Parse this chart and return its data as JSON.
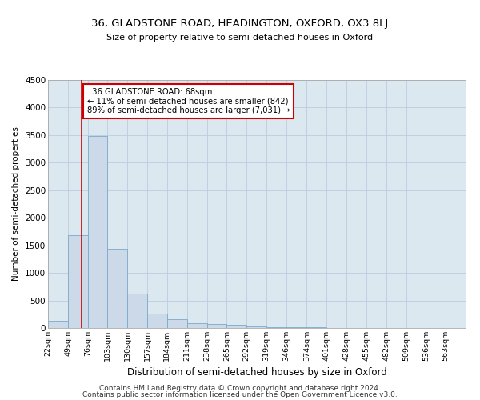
{
  "title1": "36, GLADSTONE ROAD, HEADINGTON, OXFORD, OX3 8LJ",
  "title2": "Size of property relative to semi-detached houses in Oxford",
  "xlabel": "Distribution of semi-detached houses by size in Oxford",
  "ylabel": "Number of semi-detached properties",
  "bar_color": "#ccd9e8",
  "bar_edge_color": "#7aaac8",
  "grid_color": "#bbccdd",
  "bg_color": "#dce8f0",
  "annotation_box_color": "#cc0000",
  "property_line_color": "#cc0000",
  "property_size": 68,
  "annotation_text": "  36 GLADSTONE ROAD: 68sqm\n← 11% of semi-detached houses are smaller (842)\n89% of semi-detached houses are larger (7,031) →",
  "footer1": "Contains HM Land Registry data © Crown copyright and database right 2024.",
  "footer2": "Contains public sector information licensed under the Open Government Licence v3.0.",
  "bin_labels": [
    "22sqm",
    "49sqm",
    "76sqm",
    "103sqm",
    "130sqm",
    "157sqm",
    "184sqm",
    "211sqm",
    "238sqm",
    "265sqm",
    "292sqm",
    "319sqm",
    "346sqm",
    "374sqm",
    "401sqm",
    "428sqm",
    "455sqm",
    "482sqm",
    "509sqm",
    "536sqm",
    "563sqm"
  ],
  "bin_edges": [
    22,
    49,
    76,
    103,
    130,
    157,
    184,
    211,
    238,
    265,
    292,
    319,
    346,
    374,
    401,
    428,
    455,
    482,
    509,
    536,
    563,
    590
  ],
  "bar_heights": [
    130,
    1680,
    3490,
    1430,
    620,
    265,
    155,
    80,
    68,
    52,
    28,
    18,
    14,
    9,
    7,
    5,
    4,
    4,
    3,
    2,
    2
  ],
  "ylim": [
    0,
    4500
  ],
  "yticks": [
    0,
    500,
    1000,
    1500,
    2000,
    2500,
    3000,
    3500,
    4000,
    4500
  ]
}
